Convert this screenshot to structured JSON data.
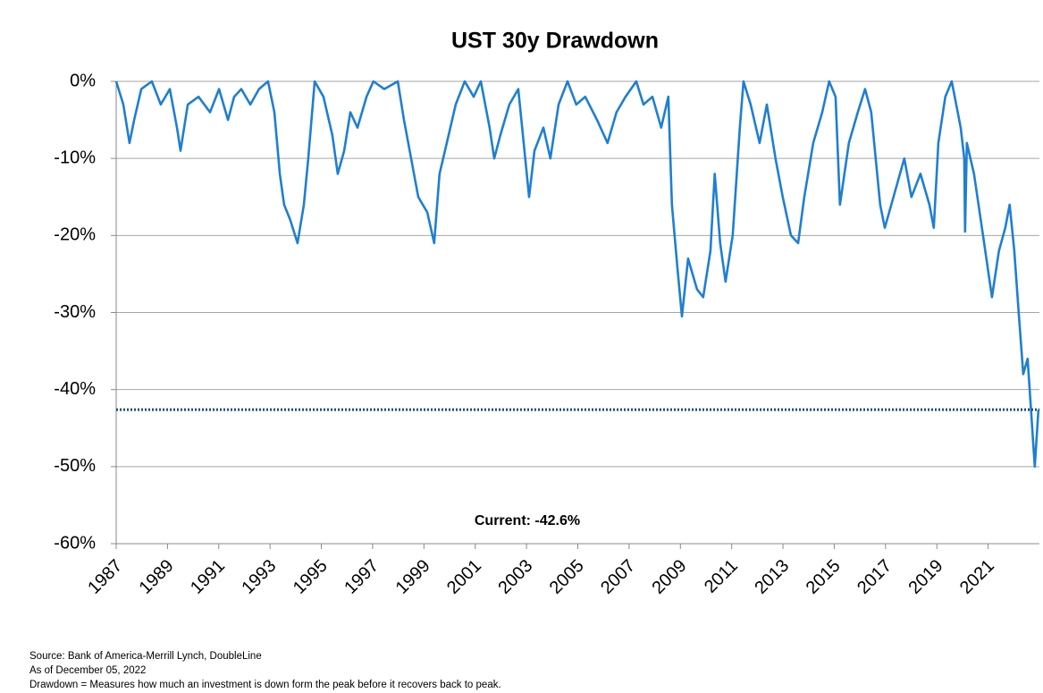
{
  "chart_data": {
    "type": "line",
    "title": "UST 30y Drawdown",
    "x": [
      1987.0,
      1987.28,
      1987.52,
      1987.7,
      1987.98,
      1988.39,
      1988.74,
      1989.09,
      1989.37,
      1989.51,
      1989.79,
      1990.21,
      1990.66,
      1991.01,
      1991.36,
      1991.6,
      1991.88,
      1992.23,
      1992.57,
      1992.92,
      1993.17,
      1993.38,
      1993.55,
      1993.79,
      1994.07,
      1994.32,
      1994.49,
      1994.74,
      1995.08,
      1995.43,
      1995.64,
      1995.89,
      1996.13,
      1996.41,
      1996.76,
      1997.03,
      1997.45,
      1997.98,
      1998.22,
      1998.5,
      1998.78,
      1999.13,
      1999.4,
      1999.61,
      1999.89,
      2000.24,
      2000.59,
      2000.94,
      2001.22,
      2001.56,
      2001.74,
      2001.98,
      2002.33,
      2002.68,
      2003.1,
      2003.31,
      2003.66,
      2003.93,
      2004.25,
      2004.6,
      2004.94,
      2005.29,
      2005.75,
      2006.16,
      2006.51,
      2006.86,
      2007.28,
      2007.56,
      2007.91,
      2008.25,
      2008.53,
      2008.67,
      2008.88,
      2009.06,
      2009.3,
      2009.65,
      2009.89,
      2010.17,
      2010.34,
      2010.55,
      2010.76,
      2011.04,
      2011.32,
      2011.46,
      2011.74,
      2012.09,
      2012.37,
      2012.71,
      2012.99,
      2013.31,
      2013.59,
      2013.83,
      2014.18,
      2014.53,
      2014.8,
      2015.05,
      2015.22,
      2015.57,
      2015.92,
      2016.2,
      2016.44,
      2016.79,
      2016.97,
      2017.31,
      2017.73,
      2018.01,
      2018.36,
      2018.71,
      2018.88,
      2019.06,
      2019.33,
      2019.58,
      2019.93,
      2020.07,
      2020.1,
      2020.17,
      2020.45,
      2020.8,
      2021.15,
      2021.42,
      2021.67,
      2021.84,
      2022.02,
      2022.19,
      2022.37,
      2022.54,
      2022.68,
      2022.82,
      2022.96
    ],
    "series": [
      {
        "name": "UST 30y Drawdown",
        "color": "#1f7fd0",
        "values": [
          0,
          -3,
          -8,
          -5,
          -1,
          0,
          -3,
          -1,
          -6,
          -9,
          -3,
          -2,
          -4,
          -1,
          -5,
          -2,
          -1,
          -3,
          -1,
          0,
          -4,
          -12,
          -16,
          -18,
          -21,
          -16,
          -10,
          0,
          -2,
          -7,
          -12,
          -9,
          -4,
          -6,
          -2,
          0,
          -1,
          0,
          -5,
          -10,
          -15,
          -17,
          -21,
          -12,
          -8,
          -3,
          0,
          -2,
          0,
          -6,
          -10,
          -7,
          -3,
          -1,
          -15,
          -9,
          -6,
          -10,
          -3,
          0,
          -3,
          -2,
          -5,
          -8,
          -4,
          -2,
          0,
          -3,
          -2,
          -6,
          -2,
          -16,
          -24,
          -30.5,
          -23,
          -27,
          -28,
          -22,
          -12,
          -21,
          -26,
          -20,
          -6,
          0,
          -3,
          -8,
          -3,
          -10,
          -15,
          -20,
          -21,
          -15,
          -8,
          -4,
          0,
          -2,
          -16,
          -8,
          -4,
          -1,
          -4,
          -16,
          -19,
          -15,
          -10,
          -15,
          -12,
          -16,
          -19,
          -8,
          -2,
          0,
          -6,
          -10,
          -19.5,
          -8,
          -12,
          -20,
          -28,
          -22,
          -19,
          -16,
          -22,
          -30,
          -38,
          -36,
          -43,
          -50,
          -42.6
        ]
      }
    ],
    "xlim": [
      1987,
      2023
    ],
    "xticks": [
      1987,
      1989,
      1991,
      1993,
      1995,
      1997,
      1999,
      2001,
      2003,
      2005,
      2007,
      2009,
      2011,
      2013,
      2015,
      2017,
      2019,
      2021
    ],
    "ylim": [
      -60,
      0
    ],
    "yticks": [
      {
        "value": 0,
        "label": "0%"
      },
      {
        "value": -10,
        "label": "-10%"
      },
      {
        "value": -20,
        "label": "-20%"
      },
      {
        "value": -30,
        "label": "-30%"
      },
      {
        "value": -40,
        "label": "-40%"
      },
      {
        "value": -50,
        "label": "-50%"
      },
      {
        "value": -60,
        "label": "-60%"
      }
    ],
    "grid": true,
    "reference_line": {
      "value": -42.6,
      "color": "#1f4e79"
    },
    "annotation": "Current: -42.6%",
    "notes": [
      "Source: Bank of America-Merrill Lynch, DoubleLine",
      "As of December 05, 2022",
      "Drawdown = Measures how much an investment is down form the peak before it recovers back to peak."
    ]
  }
}
